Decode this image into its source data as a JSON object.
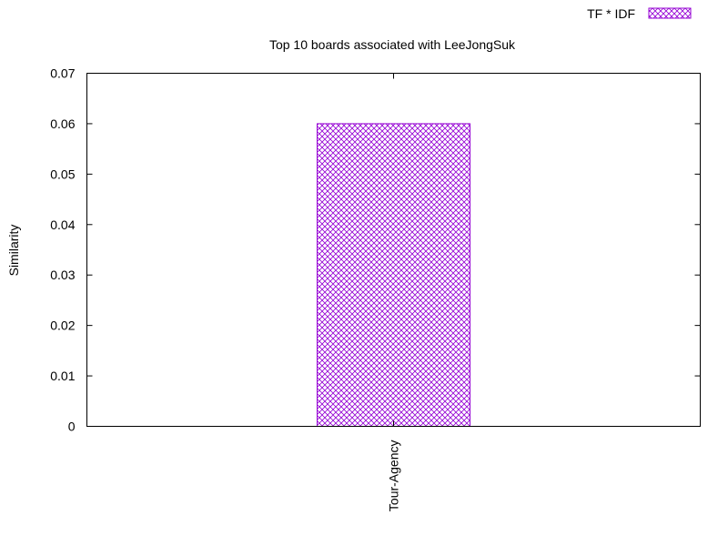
{
  "chart_data": {
    "type": "bar",
    "title": "Top 10 boards associated with LeeJongSuk",
    "xlabel": "",
    "ylabel": "Similarity",
    "categories": [
      "Tour-Agency"
    ],
    "series": [
      {
        "name": "TF * IDF",
        "values": [
          0.06
        ]
      }
    ],
    "ylim": [
      0,
      0.07
    ],
    "yticks": [
      "0",
      "0.01",
      "0.02",
      "0.03",
      "0.04",
      "0.05",
      "0.06",
      "0.07"
    ],
    "grid": false,
    "legend_position": "top-right",
    "bar_color": "#9400d3",
    "bar_fill": "crosshatch"
  }
}
